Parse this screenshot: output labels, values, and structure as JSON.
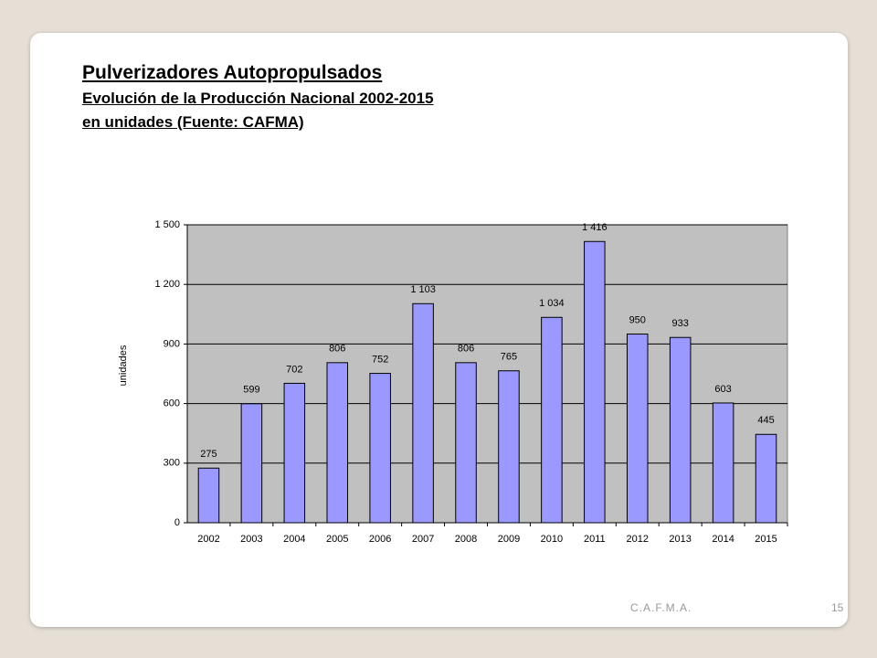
{
  "slide": {
    "title": "Pulverizadores Autopropulsados",
    "subtitle": "Evolución de la Producción Nacional 2002-2015",
    "note": "en unidades (Fuente: CAFMA)",
    "footer": "C.A.F.M.A.",
    "page_number": "15"
  },
  "chart_data": {
    "type": "bar",
    "y_label": "unidades",
    "categories": [
      "2002",
      "2003",
      "2004",
      "2005",
      "2006",
      "2007",
      "2008",
      "2009",
      "2010",
      "2011",
      "2012",
      "2013",
      "2014",
      "2015"
    ],
    "values": [
      275,
      599,
      702,
      806,
      752,
      1103,
      806,
      765,
      1034,
      1416,
      950,
      933,
      603,
      445
    ],
    "value_labels": [
      "275",
      "599",
      "702",
      "806",
      "752",
      "1 103",
      "806",
      "765",
      "1 034",
      "1 416",
      "950",
      "933",
      "603",
      "445"
    ],
    "color": "#9999ff",
    "plot_background": "#c0c0c0",
    "ylim": [
      0,
      1500
    ],
    "yticks": [
      0,
      300,
      600,
      900,
      {
        "value": 1200,
        "label": "1 200"
      },
      {
        "value": 1500,
        "label": "1 500"
      }
    ],
    "grid": true
  }
}
